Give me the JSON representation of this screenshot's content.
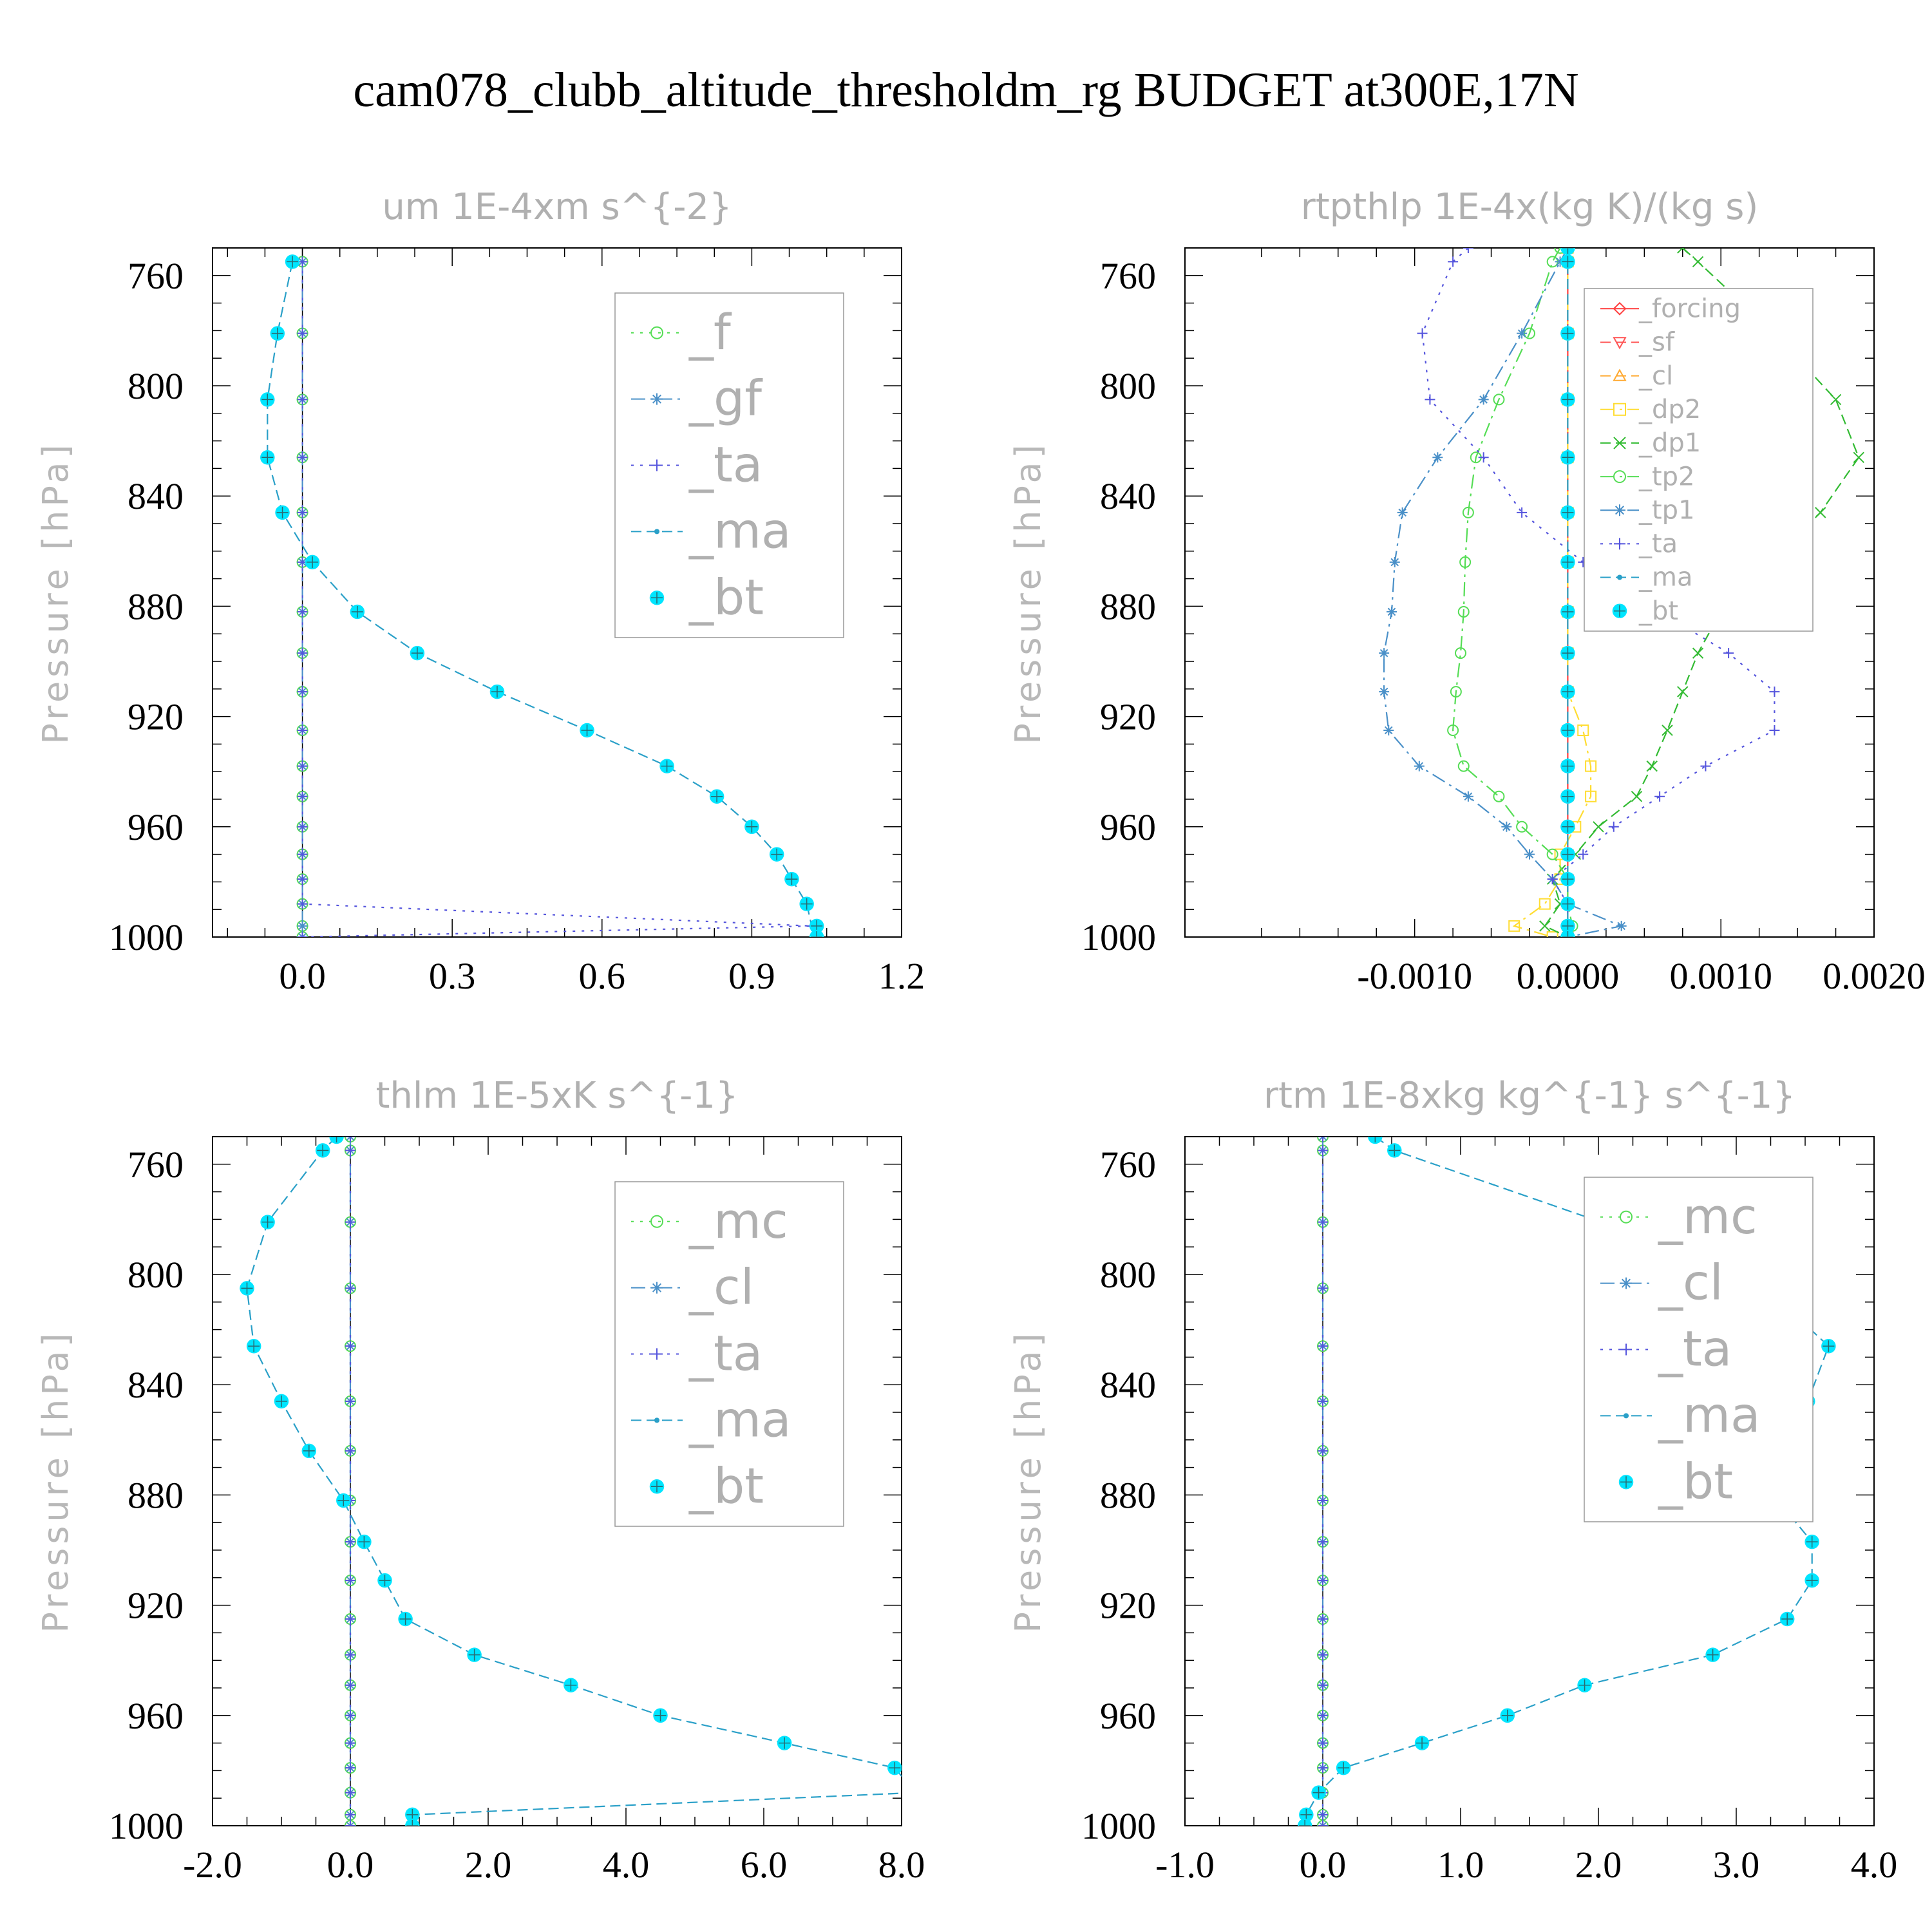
{
  "figure_title": "cam078_clubb_altitude_thresholdm_rg  BUDGET at300E,17N",
  "chart_data": [
    {
      "type": "line",
      "title": "um  1E-4xm s^{-2}",
      "ylabel": "Pressure [hPa]",
      "xlabel": "",
      "xlim": [
        -0.18,
        1.2
      ],
      "ylim": [
        1000,
        750
      ],
      "xticks": [
        0.0,
        0.3,
        0.6,
        0.9,
        1.2
      ],
      "xtick_labels": [
        "0.0",
        "0.3",
        "0.6",
        "0.9",
        "1.2"
      ],
      "yticks": [
        760,
        800,
        840,
        880,
        920,
        960,
        1000
      ],
      "legend_position": "top-right",
      "levels": [
        755,
        781,
        805,
        826,
        846,
        864,
        882,
        897,
        911,
        925,
        938,
        949,
        960,
        970,
        979,
        988,
        996,
        1000
      ],
      "series": [
        {
          "name": "_f",
          "color": "#55dd55",
          "marker": "circle",
          "dash": "dot",
          "values": [
            0,
            0,
            0,
            0,
            0,
            0,
            0,
            0,
            0,
            0,
            0,
            0,
            0,
            0,
            0,
            0,
            0,
            0
          ]
        },
        {
          "name": "_gf",
          "color": "#4a90c8",
          "marker": "star",
          "dash": "dashdot",
          "values": [
            0,
            0,
            0,
            0,
            0,
            0,
            0,
            0,
            0,
            0,
            0,
            0,
            0,
            0,
            0,
            0,
            0,
            0
          ]
        },
        {
          "name": "_ta",
          "color": "#5555dd",
          "marker": "plus",
          "dash": "dot",
          "values": [
            0,
            0,
            0,
            0,
            0,
            0,
            0,
            0,
            0,
            0,
            0,
            0,
            0,
            0,
            0,
            0,
            1.02,
            0
          ]
        },
        {
          "name": "_ma",
          "color": "#2aa0c8",
          "marker": "dot",
          "dash": "dash",
          "values": [
            -0.02,
            -0.05,
            -0.07,
            -0.07,
            -0.04,
            0.02,
            0.11,
            0.23,
            0.39,
            0.57,
            0.73,
            0.83,
            0.9,
            0.95,
            0.98,
            1.01,
            1.02,
            1.02
          ]
        },
        {
          "name": "_bt",
          "color": "#00e5ff",
          "marker": "bigdot",
          "dash": "none",
          "values": [
            -0.02,
            -0.05,
            -0.07,
            -0.07,
            -0.04,
            0.02,
            0.11,
            0.23,
            0.39,
            0.57,
            0.73,
            0.83,
            0.9,
            0.95,
            0.98,
            1.01,
            1.03,
            1.03
          ]
        }
      ]
    },
    {
      "type": "line",
      "title": "rtpthlp  1E-4x(kg K)/(kg s)",
      "ylabel": "Pressure [hPa]",
      "xlabel": "",
      "xlim": [
        -0.0025,
        0.002
      ],
      "ylim": [
        1000,
        750
      ],
      "xticks": [
        -0.001,
        0.0,
        0.001,
        0.002
      ],
      "xtick_labels": [
        "-0.0010",
        "0.0000",
        "0.0010",
        "0.0020"
      ],
      "yticks": [
        760,
        800,
        840,
        880,
        920,
        960,
        1000
      ],
      "legend_position": "top-right",
      "levels": [
        750,
        755,
        781,
        805,
        826,
        846,
        864,
        882,
        897,
        911,
        925,
        938,
        949,
        960,
        970,
        979,
        988,
        996,
        1000
      ],
      "series": [
        {
          "name": "_forcing",
          "color": "#ff4040",
          "marker": "diamond",
          "dash": "solid",
          "values": [
            0,
            0,
            0,
            0,
            0,
            0,
            0,
            0,
            0,
            0,
            0,
            0,
            0,
            0,
            0,
            0,
            0,
            0,
            0
          ]
        },
        {
          "name": "_sf",
          "color": "#ff5555",
          "marker": "tri-down",
          "dash": "dash",
          "values": [
            0,
            0,
            0,
            0,
            0,
            0,
            0,
            0,
            0,
            0,
            0,
            0,
            0,
            0,
            0,
            0,
            0,
            0,
            0
          ]
        },
        {
          "name": "_cl",
          "color": "#ffaa33",
          "marker": "tri-up",
          "dash": "dash",
          "values": [
            0,
            0,
            0,
            0,
            0,
            0,
            0,
            0,
            0,
            0,
            0,
            0,
            0,
            0,
            0,
            0,
            0,
            0,
            0
          ]
        },
        {
          "name": "_dp2",
          "color": "#ffdd33",
          "marker": "square",
          "dash": "dashdot",
          "values": [
            0,
            0,
            0,
            0,
            0,
            0,
            0,
            0,
            0,
            0,
            0.0001,
            0.00015,
            0.00015,
            5e-05,
            -5e-05,
            -5e-05,
            -0.00015,
            -0.00035,
            -0.0001
          ]
        },
        {
          "name": "_dp1",
          "color": "#33bb33",
          "marker": "x",
          "dash": "dash",
          "values": [
            0.00075,
            0.00085,
            0.00135,
            0.00175,
            0.0019,
            0.00165,
            0.0013,
            0.001,
            0.00085,
            0.00075,
            0.00065,
            0.00055,
            0.00045,
            0.0002,
            5e-05,
            -0.0001,
            -5e-05,
            -0.00015,
            0
          ]
        },
        {
          "name": "_tp2",
          "color": "#55dd55",
          "marker": "circle",
          "dash": "dashdot",
          "values": [
            -5e-05,
            -0.0001,
            -0.00025,
            -0.00045,
            -0.0006,
            -0.00065,
            -0.00067,
            -0.00068,
            -0.0007,
            -0.00073,
            -0.00075,
            -0.00068,
            -0.00045,
            -0.0003,
            -0.0001,
            0,
            0,
            3e-05,
            0
          ]
        },
        {
          "name": "_tp1",
          "color": "#4a90c8",
          "marker": "star",
          "dash": "dashdot",
          "values": [
            0,
            -5e-05,
            -0.0003,
            -0.00055,
            -0.00085,
            -0.00108,
            -0.00113,
            -0.00115,
            -0.0012,
            -0.0012,
            -0.00117,
            -0.00097,
            -0.00065,
            -0.0004,
            -0.00025,
            -0.0001,
            0,
            0.00035,
            0
          ]
        },
        {
          "name": "_ta",
          "color": "#5555dd",
          "marker": "plus",
          "dash": "dot",
          "values": [
            -0.00065,
            -0.00075,
            -0.00095,
            -0.0009,
            -0.00055,
            -0.0003,
            0.0001,
            0.0006,
            0.00105,
            0.00135,
            0.00135,
            0.0009,
            0.0006,
            0.0003,
            0.0001,
            -0.0001,
            0,
            0,
            0
          ]
        },
        {
          "name": "_ma",
          "color": "#2aa0c8",
          "marker": "dot",
          "dash": "dash",
          "values": [
            0,
            0,
            0,
            0,
            0,
            0,
            0,
            0,
            0,
            0,
            0,
            0,
            0,
            0,
            0,
            0,
            0,
            0,
            0
          ]
        },
        {
          "name": "_bt",
          "color": "#00e5ff",
          "marker": "bigdot",
          "dash": "none",
          "values": [
            0,
            0,
            0,
            0,
            0,
            0,
            0,
            0,
            0,
            0,
            0,
            0,
            0,
            0,
            0,
            0,
            0,
            0,
            0
          ]
        }
      ]
    },
    {
      "type": "line",
      "title": "thlm  1E-5xK s^{-1}",
      "ylabel": "Pressure [hPa]",
      "xlabel": "",
      "xlim": [
        -2.0,
        8.0
      ],
      "ylim": [
        1000,
        750
      ],
      "xticks": [
        -2.0,
        0.0,
        2.0,
        4.0,
        6.0,
        8.0
      ],
      "xtick_labels": [
        "-2.0",
        "0.0",
        "2.0",
        "4.0",
        "6.0",
        "8.0"
      ],
      "yticks": [
        760,
        800,
        840,
        880,
        920,
        960,
        1000
      ],
      "legend_position": "top-right",
      "levels": [
        750,
        755,
        781,
        805,
        826,
        846,
        864,
        882,
        897,
        911,
        925,
        938,
        949,
        960,
        970,
        979,
        988,
        996,
        1000
      ],
      "series": [
        {
          "name": "_mc",
          "color": "#55dd55",
          "marker": "circle",
          "dash": "dot",
          "values": [
            0,
            0,
            0,
            0,
            0,
            0,
            0,
            0,
            0,
            0,
            0,
            0,
            0,
            0,
            0,
            0,
            0,
            0,
            0
          ]
        },
        {
          "name": "_cl",
          "color": "#4a90c8",
          "marker": "star",
          "dash": "dashdot",
          "values": [
            0,
            0,
            0,
            0,
            0,
            0,
            0,
            0,
            0,
            0,
            0,
            0,
            0,
            0,
            0,
            0,
            0,
            0,
            0
          ]
        },
        {
          "name": "_ta",
          "color": "#5555dd",
          "marker": "plus",
          "dash": "dot",
          "values": [
            0,
            0,
            0,
            0,
            0,
            0,
            0,
            0,
            0,
            0,
            0,
            0,
            0,
            0,
            0,
            0,
            0,
            0,
            0
          ]
        },
        {
          "name": "_ma",
          "color": "#2aa0c8",
          "marker": "dot",
          "dash": "dash",
          "values": [
            -0.2,
            -0.4,
            -1.2,
            -1.5,
            -1.4,
            -1.0,
            -0.6,
            -0.1,
            0.2,
            0.5,
            0.8,
            1.8,
            3.2,
            4.5,
            6.3,
            7.9,
            8.2,
            0.9,
            0.9
          ]
        },
        {
          "name": "_bt",
          "color": "#00e5ff",
          "marker": "bigdot",
          "dash": "none",
          "values": [
            -0.2,
            -0.4,
            -1.2,
            -1.5,
            -1.4,
            -1.0,
            -0.6,
            -0.1,
            0.2,
            0.5,
            0.8,
            1.8,
            3.2,
            4.5,
            6.3,
            7.9,
            8.2,
            0.9,
            0.9
          ]
        }
      ]
    },
    {
      "type": "line",
      "title": "rtm  1E-8xkg kg^{-1} s^{-1}",
      "ylabel": "Pressure [hPa]",
      "xlabel": "",
      "xlim": [
        -1.0,
        4.0
      ],
      "ylim": [
        1000,
        750
      ],
      "xticks": [
        -1.0,
        0.0,
        1.0,
        2.0,
        3.0,
        4.0
      ],
      "xtick_labels": [
        "-1.0",
        "0.0",
        "1.0",
        "2.0",
        "3.0",
        "4.0"
      ],
      "yticks": [
        760,
        800,
        840,
        880,
        920,
        960,
        1000
      ],
      "legend_position": "top-right",
      "levels": [
        750,
        755,
        781,
        805,
        826,
        846,
        864,
        882,
        897,
        911,
        925,
        938,
        949,
        960,
        970,
        979,
        988,
        996,
        1000
      ],
      "series": [
        {
          "name": "_mc",
          "color": "#55dd55",
          "marker": "circle",
          "dash": "dot",
          "values": [
            0,
            0,
            0,
            0,
            0,
            0,
            0,
            0,
            0,
            0,
            0,
            0,
            0,
            0,
            0,
            0,
            0,
            0,
            0
          ]
        },
        {
          "name": "_cl",
          "color": "#4a90c8",
          "marker": "star",
          "dash": "dashdot",
          "values": [
            0,
            0,
            0,
            0,
            0,
            0,
            0,
            0,
            0,
            0,
            0,
            0,
            0,
            0,
            0,
            0,
            0,
            0,
            0
          ]
        },
        {
          "name": "_ta",
          "color": "#5555dd",
          "marker": "plus",
          "dash": "dot",
          "values": [
            0,
            0,
            0,
            0,
            0,
            0,
            0,
            0,
            0,
            0,
            0,
            0,
            0,
            0,
            0,
            0,
            0,
            0,
            0
          ]
        },
        {
          "name": "_ma",
          "color": "#2aa0c8",
          "marker": "dot",
          "dash": "dash",
          "values": [
            0.38,
            0.52,
            2.02,
            3.22,
            3.67,
            3.52,
            3.25,
            3.3,
            3.55,
            3.55,
            3.37,
            2.83,
            1.9,
            1.34,
            0.72,
            0.15,
            -0.03,
            -0.12,
            -0.13
          ]
        },
        {
          "name": "_bt",
          "color": "#00e5ff",
          "marker": "bigdot",
          "dash": "none",
          "values": [
            0.38,
            0.52,
            2.02,
            3.22,
            3.67,
            3.52,
            3.25,
            3.3,
            3.55,
            3.55,
            3.37,
            2.83,
            1.9,
            1.34,
            0.72,
            0.15,
            -0.03,
            -0.12,
            -0.13
          ]
        }
      ]
    }
  ]
}
